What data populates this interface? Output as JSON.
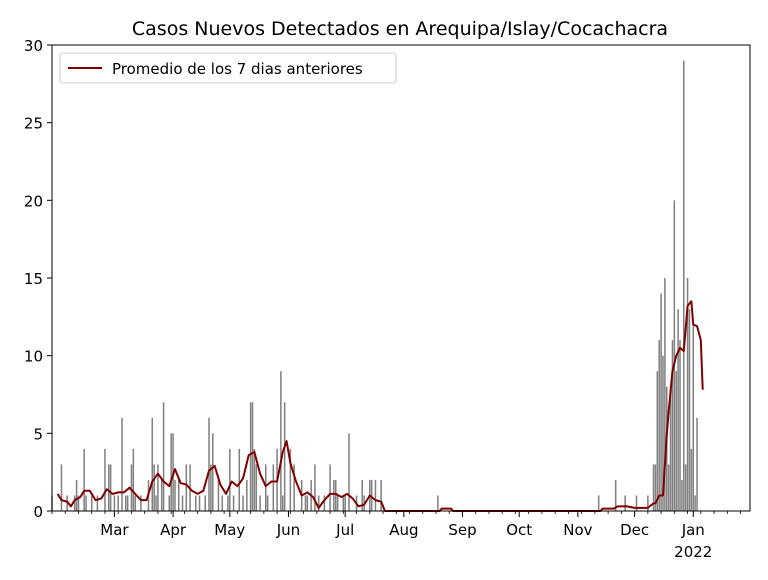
{
  "chart_data": {
    "type": "bar",
    "title": "Casos Nuevos Detectados en Arequipa/Islay/Cocachacra",
    "xlabel": "",
    "ylabel": "",
    "ylim": [
      0,
      30
    ],
    "yticks": [
      0,
      5,
      10,
      15,
      20,
      25,
      30
    ],
    "xrange_days": [
      "2021-01-27",
      "2022-01-31"
    ],
    "xticks": [
      {
        "date": "2021-03-01",
        "label": "Mar"
      },
      {
        "date": "2021-04-01",
        "label": "Apr"
      },
      {
        "date": "2021-05-01",
        "label": "May"
      },
      {
        "date": "2021-06-01",
        "label": "Jun"
      },
      {
        "date": "2021-07-01",
        "label": "Jul"
      },
      {
        "date": "2021-08-01",
        "label": "Aug"
      },
      {
        "date": "2021-09-01",
        "label": "Sep"
      },
      {
        "date": "2021-10-01",
        "label": "Oct"
      },
      {
        "date": "2021-11-01",
        "label": "Nov"
      },
      {
        "date": "2021-12-01",
        "label": "Dec"
      },
      {
        "date": "2022-01-01",
        "label": "Jan"
      }
    ],
    "year_label": "2022",
    "grid": false,
    "legend_position": "top-left",
    "bar_color": "#808080",
    "line_color": "#800000",
    "series": [
      {
        "name": "",
        "kind": "bar",
        "points": [
          [
            "2021-01-27",
            1
          ],
          [
            "2021-02-01",
            3
          ],
          [
            "2021-02-04",
            1
          ],
          [
            "2021-02-08",
            1
          ],
          [
            "2021-02-09",
            2
          ],
          [
            "2021-02-10",
            1
          ],
          [
            "2021-02-13",
            4
          ],
          [
            "2021-02-14",
            1
          ],
          [
            "2021-02-17",
            1
          ],
          [
            "2021-02-20",
            1
          ],
          [
            "2021-02-24",
            4
          ],
          [
            "2021-02-26",
            3
          ],
          [
            "2021-02-27",
            3
          ],
          [
            "2021-03-01",
            1
          ],
          [
            "2021-03-03",
            1
          ],
          [
            "2021-03-05",
            6
          ],
          [
            "2021-03-07",
            1
          ],
          [
            "2021-03-08",
            1
          ],
          [
            "2021-03-10",
            3
          ],
          [
            "2021-03-11",
            4
          ],
          [
            "2021-03-12",
            1
          ],
          [
            "2021-03-15",
            1
          ],
          [
            "2021-03-19",
            2
          ],
          [
            "2021-03-21",
            6
          ],
          [
            "2021-03-22",
            3
          ],
          [
            "2021-03-23",
            1
          ],
          [
            "2021-03-24",
            3
          ],
          [
            "2021-03-26",
            2
          ],
          [
            "2021-03-27",
            7
          ],
          [
            "2021-03-30",
            1
          ],
          [
            "2021-03-31",
            5
          ],
          [
            "2021-04-01",
            5
          ],
          [
            "2021-04-02",
            2
          ],
          [
            "2021-04-04",
            2
          ],
          [
            "2021-04-06",
            1
          ],
          [
            "2021-04-08",
            3
          ],
          [
            "2021-04-10",
            3
          ],
          [
            "2021-04-13",
            1
          ],
          [
            "2021-04-15",
            1
          ],
          [
            "2021-04-18",
            1
          ],
          [
            "2021-04-20",
            6
          ],
          [
            "2021-04-21",
            3
          ],
          [
            "2021-04-22",
            5
          ],
          [
            "2021-04-25",
            2
          ],
          [
            "2021-04-27",
            1
          ],
          [
            "2021-04-30",
            1
          ],
          [
            "2021-05-01",
            4
          ],
          [
            "2021-05-03",
            1
          ],
          [
            "2021-05-06",
            4
          ],
          [
            "2021-05-08",
            1
          ],
          [
            "2021-05-10",
            2
          ],
          [
            "2021-05-12",
            7
          ],
          [
            "2021-05-13",
            7
          ],
          [
            "2021-05-14",
            4
          ],
          [
            "2021-05-15",
            3
          ],
          [
            "2021-05-17",
            1
          ],
          [
            "2021-05-20",
            3
          ],
          [
            "2021-05-21",
            1
          ],
          [
            "2021-05-24",
            3
          ],
          [
            "2021-05-26",
            4
          ],
          [
            "2021-05-28",
            9
          ],
          [
            "2021-05-29",
            1
          ],
          [
            "2021-05-30",
            7
          ],
          [
            "2021-06-02",
            4
          ],
          [
            "2021-06-04",
            3
          ],
          [
            "2021-06-08",
            2
          ],
          [
            "2021-06-10",
            1
          ],
          [
            "2021-06-11",
            1
          ],
          [
            "2021-06-13",
            2
          ],
          [
            "2021-06-15",
            3
          ],
          [
            "2021-06-17",
            1
          ],
          [
            "2021-06-20",
            1
          ],
          [
            "2021-06-23",
            3
          ],
          [
            "2021-06-25",
            2
          ],
          [
            "2021-06-26",
            2
          ],
          [
            "2021-06-27",
            1
          ],
          [
            "2021-06-30",
            1
          ],
          [
            "2021-07-01",
            1
          ],
          [
            "2021-07-03",
            5
          ],
          [
            "2021-07-07",
            1
          ],
          [
            "2021-07-10",
            2
          ],
          [
            "2021-07-11",
            1
          ],
          [
            "2021-07-14",
            2
          ],
          [
            "2021-07-15",
            2
          ],
          [
            "2021-07-17",
            2
          ],
          [
            "2021-07-20",
            2
          ],
          [
            "2021-08-19",
            1
          ],
          [
            "2021-11-12",
            1
          ],
          [
            "2021-11-21",
            2
          ],
          [
            "2021-11-26",
            1
          ],
          [
            "2021-12-02",
            1
          ],
          [
            "2021-12-08",
            1
          ],
          [
            "2021-12-11",
            3
          ],
          [
            "2021-12-12",
            3
          ],
          [
            "2021-12-13",
            9
          ],
          [
            "2021-12-14",
            11
          ],
          [
            "2021-12-15",
            14
          ],
          [
            "2021-12-16",
            10
          ],
          [
            "2021-12-17",
            15
          ],
          [
            "2021-12-18",
            8
          ],
          [
            "2021-12-19",
            3
          ],
          [
            "2021-12-20",
            8
          ],
          [
            "2021-12-21",
            11
          ],
          [
            "2021-12-22",
            20
          ],
          [
            "2021-12-23",
            9
          ],
          [
            "2021-12-24",
            13
          ],
          [
            "2021-12-25",
            11
          ],
          [
            "2021-12-26",
            2
          ],
          [
            "2021-12-27",
            29
          ],
          [
            "2021-12-28",
            3
          ],
          [
            "2021-12-29",
            15
          ],
          [
            "2021-12-30",
            13
          ],
          [
            "2021-12-31",
            4
          ],
          [
            "2022-01-01",
            12
          ],
          [
            "2022-01-02",
            1
          ],
          [
            "2022-01-03",
            6
          ]
        ]
      },
      {
        "name": "Promedio de los 7 dias anteriores",
        "kind": "line",
        "points": [
          [
            "2021-01-30",
            1.1
          ],
          [
            "2021-02-01",
            0.7
          ],
          [
            "2021-02-04",
            0.6
          ],
          [
            "2021-02-06",
            0.3
          ],
          [
            "2021-02-08",
            0.7
          ],
          [
            "2021-02-11",
            0.9
          ],
          [
            "2021-02-13",
            1.3
          ],
          [
            "2021-02-16",
            1.3
          ],
          [
            "2021-02-19",
            0.7
          ],
          [
            "2021-02-22",
            0.8
          ],
          [
            "2021-02-25",
            1.4
          ],
          [
            "2021-02-28",
            1.1
          ],
          [
            "2021-03-03",
            1.2
          ],
          [
            "2021-03-06",
            1.2
          ],
          [
            "2021-03-09",
            1.5
          ],
          [
            "2021-03-12",
            1.1
          ],
          [
            "2021-03-15",
            0.7
          ],
          [
            "2021-03-18",
            0.7
          ],
          [
            "2021-03-21",
            1.9
          ],
          [
            "2021-03-24",
            2.4
          ],
          [
            "2021-03-27",
            1.9
          ],
          [
            "2021-03-30",
            1.6
          ],
          [
            "2021-04-02",
            2.7
          ],
          [
            "2021-04-05",
            1.8
          ],
          [
            "2021-04-08",
            1.7
          ],
          [
            "2021-04-11",
            1.3
          ],
          [
            "2021-04-14",
            1.1
          ],
          [
            "2021-04-17",
            1.3
          ],
          [
            "2021-04-20",
            2.6
          ],
          [
            "2021-04-23",
            2.9
          ],
          [
            "2021-04-26",
            1.7
          ],
          [
            "2021-04-29",
            1.1
          ],
          [
            "2021-05-02",
            1.9
          ],
          [
            "2021-05-05",
            1.6
          ],
          [
            "2021-05-08",
            2.1
          ],
          [
            "2021-05-11",
            3.6
          ],
          [
            "2021-05-14",
            3.8
          ],
          [
            "2021-05-17",
            2.4
          ],
          [
            "2021-05-20",
            1.6
          ],
          [
            "2021-05-23",
            1.9
          ],
          [
            "2021-05-26",
            1.9
          ],
          [
            "2021-05-29",
            3.8
          ],
          [
            "2021-05-31",
            4.5
          ],
          [
            "2021-06-02",
            3.1
          ],
          [
            "2021-06-05",
            1.9
          ],
          [
            "2021-06-08",
            1.0
          ],
          [
            "2021-06-11",
            1.2
          ],
          [
            "2021-06-14",
            0.9
          ],
          [
            "2021-06-17",
            0.2
          ],
          [
            "2021-06-20",
            0.7
          ],
          [
            "2021-06-23",
            1.1
          ],
          [
            "2021-06-26",
            1.1
          ],
          [
            "2021-06-29",
            0.9
          ],
          [
            "2021-07-02",
            1.1
          ],
          [
            "2021-07-05",
            0.8
          ],
          [
            "2021-07-08",
            0.3
          ],
          [
            "2021-07-11",
            0.4
          ],
          [
            "2021-07-14",
            1.0
          ],
          [
            "2021-07-17",
            0.7
          ],
          [
            "2021-07-20",
            0.6
          ],
          [
            "2021-07-22",
            0.0
          ],
          [
            "2021-08-20",
            0.0
          ],
          [
            "2021-08-21",
            0.15
          ],
          [
            "2021-08-26",
            0.15
          ],
          [
            "2021-08-27",
            0.0
          ],
          [
            "2021-11-13",
            0.0
          ],
          [
            "2021-11-14",
            0.15
          ],
          [
            "2021-11-20",
            0.15
          ],
          [
            "2021-11-22",
            0.3
          ],
          [
            "2021-11-27",
            0.3
          ],
          [
            "2021-12-01",
            0.2
          ],
          [
            "2021-12-08",
            0.2
          ],
          [
            "2021-12-11",
            0.5
          ],
          [
            "2021-12-12",
            0.5
          ],
          [
            "2021-12-14",
            1.0
          ],
          [
            "2021-12-16",
            1.0
          ],
          [
            "2021-12-18",
            4.9
          ],
          [
            "2021-12-19",
            6.4
          ],
          [
            "2021-12-21",
            9.0
          ],
          [
            "2021-12-23",
            10.0
          ],
          [
            "2021-12-25",
            10.5
          ],
          [
            "2021-12-27",
            10.3
          ],
          [
            "2021-12-29",
            13.2
          ],
          [
            "2021-12-31",
            13.5
          ],
          [
            "2022-01-01",
            12.0
          ],
          [
            "2022-01-03",
            11.9
          ],
          [
            "2022-01-05",
            11.0
          ],
          [
            "2022-01-06",
            7.8
          ]
        ]
      }
    ]
  }
}
